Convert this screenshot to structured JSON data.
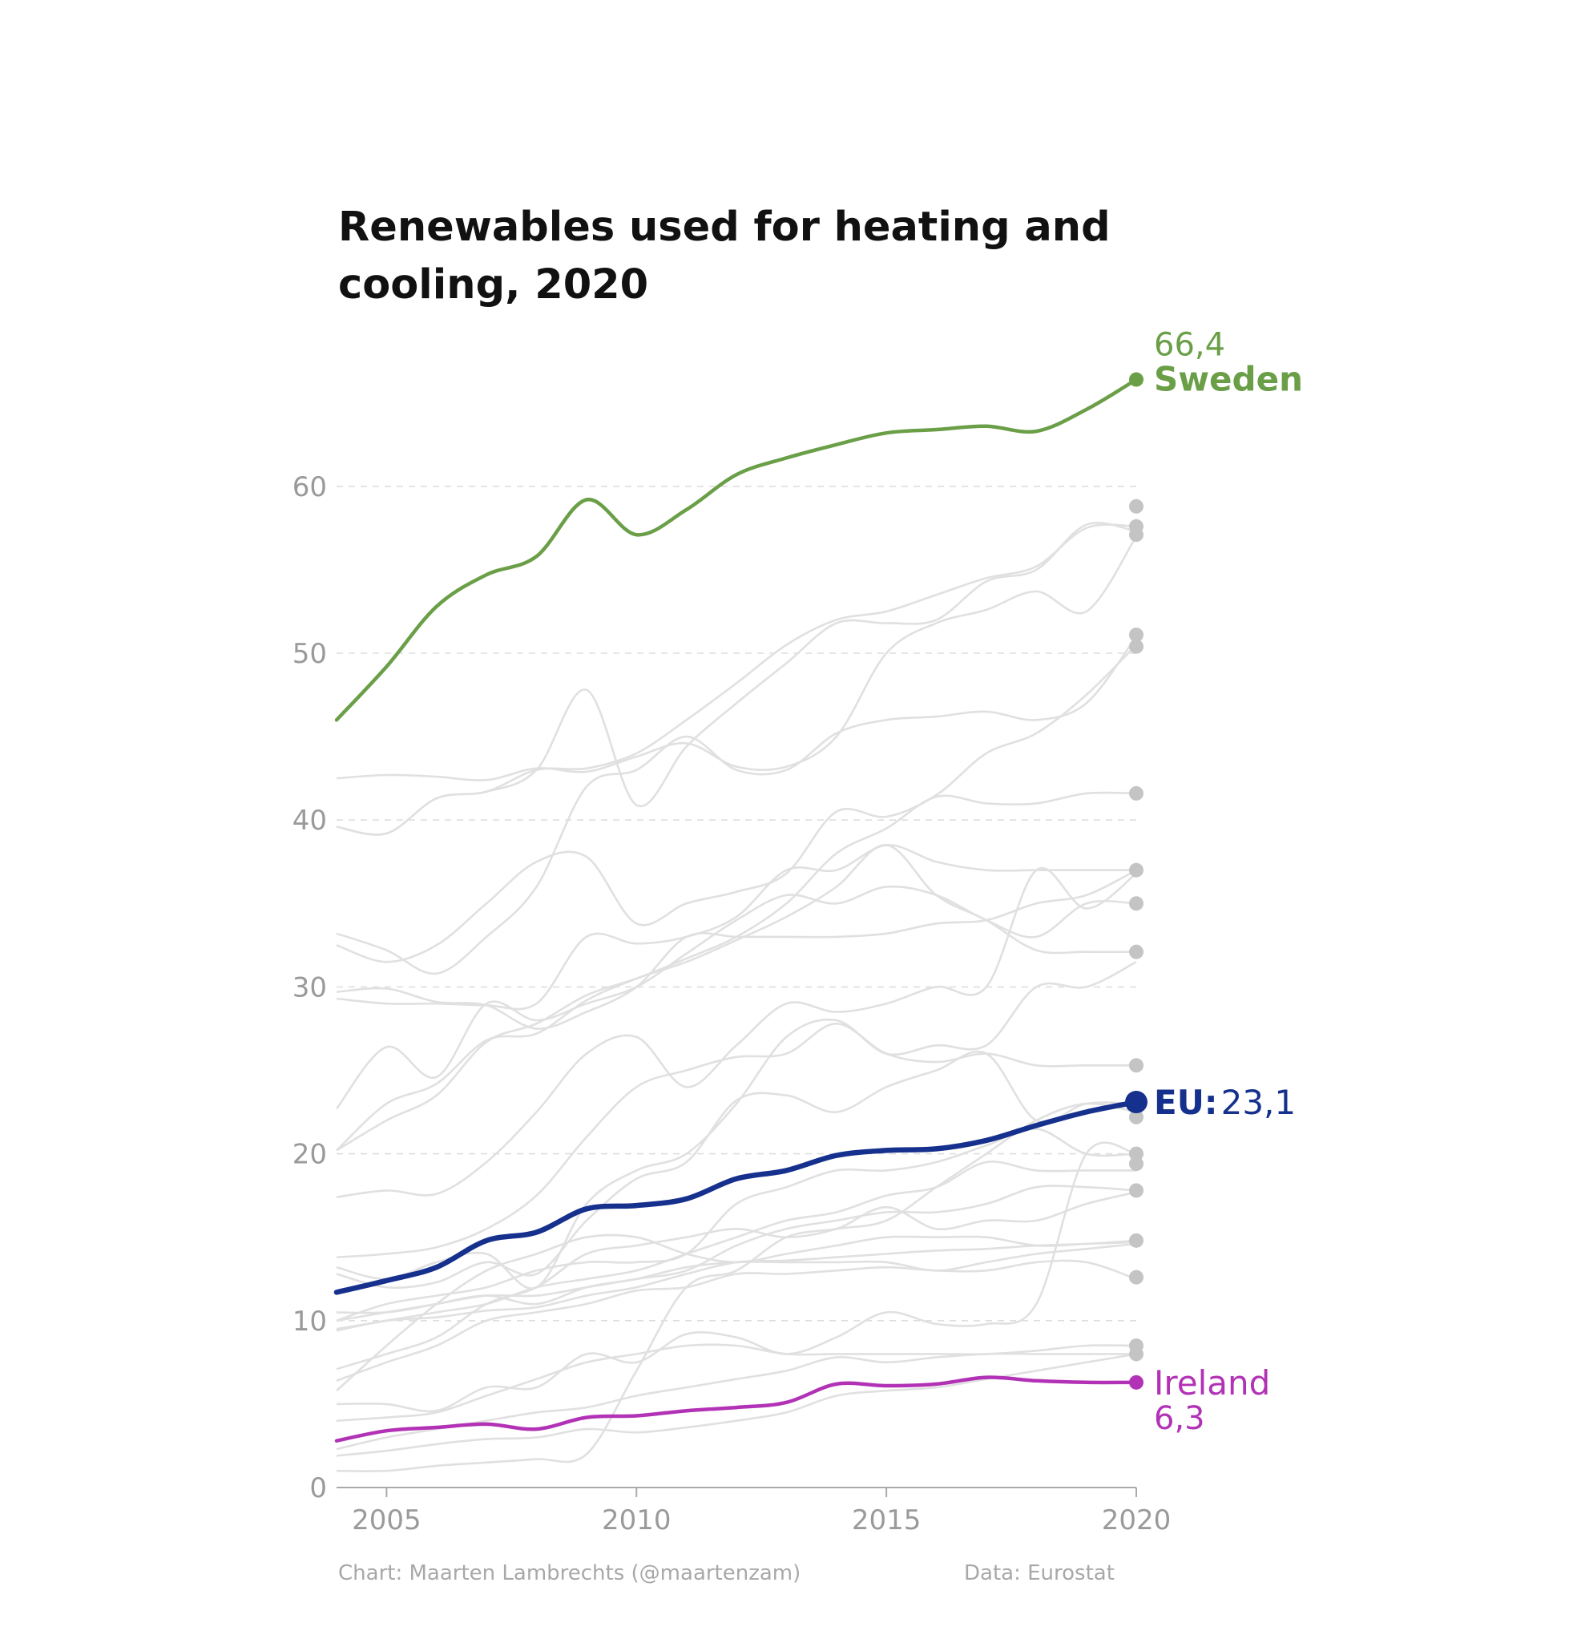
{
  "chart_data": {
    "type": "line",
    "title_lines": [
      "Renewables used for heating and",
      "cooling, 2020"
    ],
    "x_ticks": [
      2005,
      2010,
      2015,
      2020
    ],
    "y_ticks": [
      0,
      10,
      20,
      30,
      40,
      50,
      60
    ],
    "xlim": [
      2004,
      2020
    ],
    "ylim": [
      0,
      70
    ],
    "grid": "horizontal dashed",
    "x": [
      2004,
      2005,
      2006,
      2007,
      2008,
      2009,
      2010,
      2011,
      2012,
      2013,
      2014,
      2015,
      2016,
      2017,
      2018,
      2019,
      2020
    ],
    "highlighted": {
      "sweden": {
        "name": "Sweden",
        "value_label": "66,4",
        "color": "#6a9f48",
        "values": [
          46.0,
          49.2,
          52.8,
          54.7,
          55.8,
          59.2,
          57.1,
          58.6,
          60.7,
          61.7,
          62.5,
          63.2,
          63.4,
          63.6,
          63.3,
          64.6,
          66.4
        ]
      },
      "eu": {
        "name": "EU:",
        "value_label": "23,1",
        "color": "#16308d",
        "values": [
          11.7,
          12.4,
          13.2,
          14.8,
          15.3,
          16.7,
          16.9,
          17.3,
          18.5,
          19.0,
          19.9,
          20.2,
          20.3,
          20.8,
          21.7,
          22.5,
          23.1
        ]
      },
      "ireland": {
        "name": "Ireland",
        "value_label": "6,3",
        "color": "#b232b6",
        "values": [
          2.8,
          3.4,
          3.6,
          3.8,
          3.5,
          4.2,
          4.3,
          4.6,
          4.8,
          5.1,
          6.2,
          6.1,
          6.2,
          6.6,
          6.4,
          6.3,
          6.3
        ]
      }
    },
    "background_series": [
      [
        42.5,
        42.7,
        42.6,
        42.4,
        43.1,
        42.9,
        43.8,
        44.6,
        43.2,
        43.2,
        45.0,
        50.0,
        51.8,
        52.6,
        53.7,
        52.5,
        57.0
      ],
      [
        39.6,
        39.2,
        41.3,
        41.7,
        43.0,
        43.1,
        44.0,
        46.0,
        48.2,
        50.5,
        52.0,
        52.5,
        53.5,
        54.5,
        55.2,
        57.5,
        57.6
      ],
      [
        39.6,
        39.2,
        41.3,
        41.7,
        43.0,
        47.8,
        40.9,
        44.4,
        47.0,
        49.4,
        51.8,
        51.8,
        52.0,
        54.3,
        55.0,
        57.7,
        57.3
      ],
      [
        33.2,
        32.2,
        30.8,
        33.0,
        36.0,
        42.0,
        43.0,
        45.0,
        43.0,
        43.0,
        45.2,
        46.0,
        46.2,
        46.5,
        46.0,
        47.0,
        51.0
      ],
      [
        32.5,
        31.5,
        32.5,
        35.0,
        37.5,
        37.8,
        33.8,
        35.0,
        35.7,
        36.8,
        40.5,
        40.2,
        41.5,
        44.0,
        45.2,
        47.5,
        50.5
      ],
      [
        29.7,
        29.9,
        29.1,
        28.9,
        27.5,
        28.5,
        30.0,
        33.0,
        33.0,
        33.0,
        33.0,
        33.2,
        33.8,
        34.0,
        35.0,
        35.5,
        37.0
      ],
      [
        29.3,
        29.0,
        29.0,
        28.9,
        29.0,
        33.0,
        32.6,
        33.0,
        34.2,
        37.0,
        37.0,
        38.5,
        37.5,
        37.0,
        37.0,
        37.0,
        37.0
      ],
      [
        20.2,
        22.0,
        23.5,
        26.7,
        27.8,
        29.5,
        30.5,
        31.7,
        33.0,
        35.0,
        38.0,
        39.5,
        41.4,
        41.0,
        41.0,
        41.6,
        41.6
      ],
      [
        22.7,
        26.4,
        24.6,
        29.0,
        28.0,
        29.0,
        30.0,
        32.0,
        34.0,
        35.5,
        35.0,
        36.0,
        35.5,
        34.0,
        33.0,
        35.0,
        35.0
      ],
      [
        20.2,
        23.0,
        24.2,
        26.8,
        27.2,
        29.2,
        30.5,
        31.5,
        32.8,
        34.2,
        36.0,
        38.5,
        35.5,
        34.0,
        32.2,
        32.1,
        32.1
      ],
      [
        17.4,
        17.8,
        17.6,
        19.5,
        22.5,
        26.0,
        27.0,
        24.0,
        26.5,
        29.0,
        28.5,
        29.0,
        30.0,
        30.0,
        37.0,
        34.7,
        36.8
      ],
      [
        13.8,
        14.0,
        14.4,
        15.5,
        17.5,
        21.0,
        24.0,
        25.0,
        25.8,
        26.0,
        27.8,
        26.0,
        25.5,
        26.0,
        25.3,
        25.3,
        25.3
      ],
      [
        13.2,
        12.5,
        13.5,
        14.0,
        12.0,
        17.0,
        19.0,
        20.0,
        23.0,
        27.0,
        28.0,
        26.0,
        26.5,
        26.5,
        30.0,
        30.0,
        31.5
      ],
      [
        12.8,
        12.0,
        12.3,
        13.5,
        12.8,
        16.0,
        18.5,
        19.5,
        23.2,
        23.5,
        22.5,
        24.0,
        25.0,
        26.0,
        22.0,
        23.0,
        23.0
      ],
      [
        10.0,
        11.0,
        11.5,
        12.0,
        13.0,
        13.5,
        13.5,
        14.0,
        17.0,
        18.0,
        19.0,
        19.0,
        19.5,
        20.5,
        21.5,
        20.0,
        20.0
      ],
      [
        9.5,
        10.0,
        10.5,
        11.0,
        12.0,
        12.5,
        13.0,
        14.0,
        15.0,
        16.0,
        16.5,
        17.5,
        18.0,
        19.5,
        19.0,
        19.0,
        19.0
      ],
      [
        10.5,
        10.5,
        11.0,
        11.5,
        11.5,
        12.0,
        12.5,
        13.0,
        14.5,
        15.5,
        16.0,
        16.5,
        16.5,
        17.0,
        18.0,
        18.0,
        17.8
      ],
      [
        7.1,
        8.0,
        9.0,
        11.0,
        12.0,
        14.0,
        14.5,
        15.0,
        15.5,
        15.0,
        15.5,
        16.8,
        15.5,
        16.0,
        16.0,
        17.0,
        17.7
      ],
      [
        5.8,
        8.5,
        11.0,
        13.0,
        14.0,
        15.0,
        15.0,
        14.0,
        13.5,
        14.0,
        14.5,
        15.0,
        15.0,
        15.0,
        14.5,
        14.6,
        14.8
      ],
      [
        10.0,
        10.5,
        11.0,
        11.5,
        11.0,
        12.0,
        12.5,
        13.2,
        13.5,
        13.5,
        13.5,
        13.5,
        13.0,
        13.5,
        14.0,
        14.3,
        14.6
      ],
      [
        9.4,
        10.0,
        10.2,
        10.6,
        10.8,
        11.5,
        12.0,
        12.8,
        13.5,
        13.6,
        13.8,
        14.0,
        14.2,
        14.3,
        14.5,
        14.6,
        14.7
      ],
      [
        6.4,
        7.5,
        8.5,
        10.0,
        10.5,
        11.0,
        11.8,
        12.0,
        12.8,
        12.8,
        13.0,
        13.2,
        13.0,
        13.0,
        13.5,
        13.5,
        12.5
      ],
      [
        5.0,
        5.0,
        4.6,
        6.0,
        6.0,
        8.0,
        7.5,
        9.2,
        9.0,
        8.0,
        9.0,
        10.5,
        9.8,
        9.8,
        11.0,
        20.0,
        20.0
      ],
      [
        4.0,
        4.2,
        4.5,
        5.5,
        6.5,
        7.5,
        8.0,
        8.5,
        8.5,
        8.0,
        8.0,
        8.0,
        8.0,
        8.0,
        8.2,
        8.5,
        8.5
      ],
      [
        2.3,
        3.0,
        3.5,
        4.0,
        4.5,
        4.8,
        5.5,
        6.0,
        6.5,
        7.0,
        7.8,
        7.5,
        7.8,
        8.0,
        8.0,
        8.0,
        8.0
      ],
      [
        1.9,
        2.2,
        2.6,
        2.9,
        3.0,
        3.5,
        3.3,
        3.6,
        4.0,
        4.5,
        5.5,
        5.8,
        6.0,
        6.5,
        7.0,
        7.5,
        8.0
      ],
      [
        1.0,
        1.0,
        1.3,
        1.5,
        1.7,
        2.0,
        7.0,
        12.0,
        13.0,
        15.0,
        15.5,
        16.0,
        18.0,
        20.0,
        22.0,
        23.0,
        22.5
      ]
    ],
    "end_dots": [
      58.8,
      57.6,
      57.1,
      51.1,
      50.4,
      41.6,
      37.0,
      35.0,
      32.1,
      25.3,
      22.8,
      22.2,
      20.0,
      19.4,
      17.8,
      14.8,
      12.6,
      8.5,
      8.0
    ]
  },
  "credits": {
    "chart": "Chart: Maarten Lambrechts (@maartenzam)",
    "data": "Data: Eurostat"
  }
}
